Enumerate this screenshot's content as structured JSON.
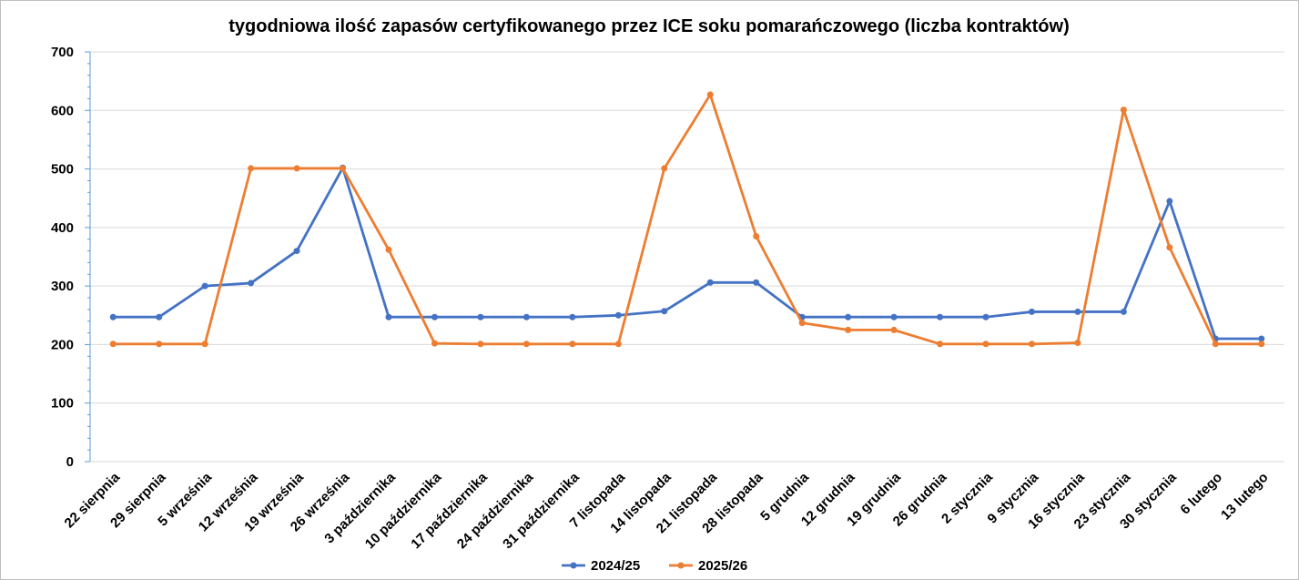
{
  "chart_data": {
    "type": "line",
    "title": "tygodniowa ilość zapasów certyfikowanego przez ICE soku pomarańczowego (liczba kontraktów)",
    "xlabel": "",
    "ylabel": "",
    "ylim": [
      0,
      700
    ],
    "yticks": [
      0,
      100,
      200,
      300,
      400,
      500,
      600,
      700
    ],
    "grid": true,
    "legend_position": "bottom",
    "categories": [
      "22 sierpnia",
      "29 sierpnia",
      "5 września",
      "12 września",
      "19 września",
      "26 września",
      "3 października",
      "10 października",
      "17 października",
      "24 października",
      "31 października",
      "7 listopada",
      "14 listopada",
      "21 listopada",
      "28 listopada",
      "5 grudnia",
      "12 grudnia",
      "19 grudnia",
      "26 grudnia",
      "2 stycznia",
      "9 stycznia",
      "16 stycznia",
      "23 stycznia",
      "30 stycznia",
      "6 lutego",
      "13 lutego"
    ],
    "series": [
      {
        "name": "2024/25",
        "color": "#4472c4",
        "values": [
          247,
          247,
          300,
          305,
          360,
          502,
          247,
          247,
          247,
          247,
          247,
          250,
          257,
          306,
          306,
          247,
          247,
          247,
          247,
          247,
          256,
          256,
          256,
          445,
          210,
          210
        ]
      },
      {
        "name": "2025/26",
        "color": "#ed7d31",
        "values": [
          201,
          201,
          201,
          501,
          501,
          501,
          362,
          202,
          201,
          201,
          201,
          201,
          501,
          627,
          385,
          237,
          225,
          225,
          201,
          201,
          201,
          203,
          601,
          366,
          201,
          201
        ]
      }
    ]
  }
}
